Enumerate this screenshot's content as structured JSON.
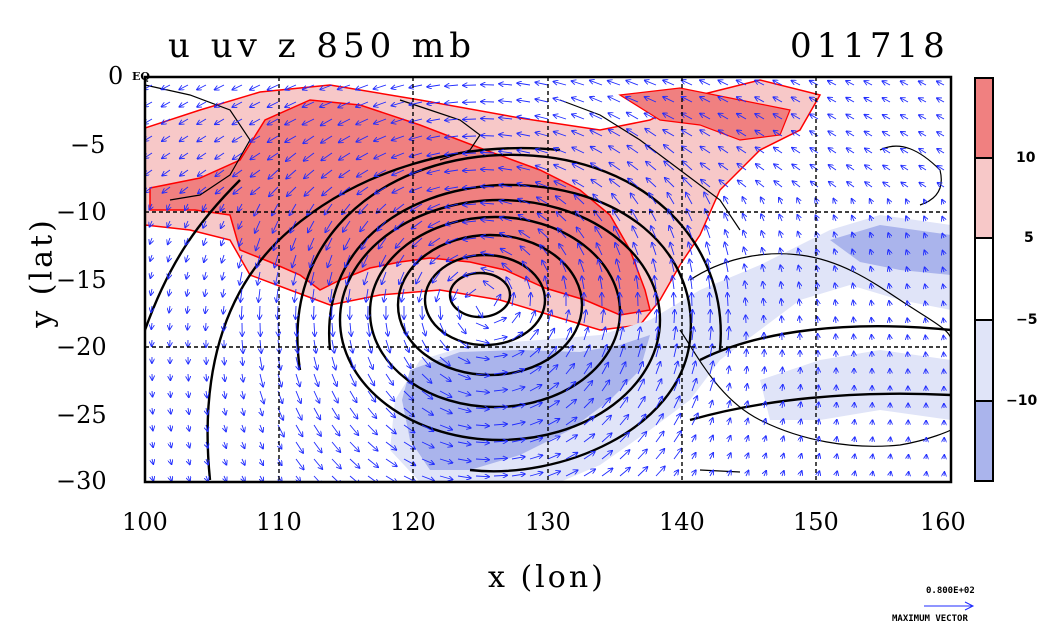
{
  "title_left": "u uv z 850 mb",
  "title_right": "011718",
  "x_axis": {
    "label": "x (lon)",
    "ticks": [
      "100",
      "110",
      "120",
      "130",
      "140",
      "150",
      "160"
    ],
    "range": [
      100,
      160
    ]
  },
  "y_axis": {
    "label": "y (lat)",
    "ticks": [
      "0",
      "−5",
      "−10",
      "−15",
      "−20",
      "−25",
      "−30"
    ],
    "range": [
      0,
      -30
    ]
  },
  "eq_label": "EQ",
  "colorbar": {
    "labels": [
      "10",
      "5",
      "−5",
      "−10"
    ],
    "colors": [
      "#f08080",
      "#f7c8c8",
      "#ffffff",
      "#e0e4f8",
      "#aab4ec"
    ]
  },
  "vector_reference": {
    "value": "0.800E+02",
    "label": "MAXIMUM VECTOR"
  },
  "colors": {
    "positive_strong": "#f08080",
    "positive_weak": "#f7c8c8",
    "negative_weak": "#e0e4f8",
    "negative_strong": "#aab4ec",
    "vector": "#1f2bff",
    "positive_contour": "#ff0000"
  }
}
